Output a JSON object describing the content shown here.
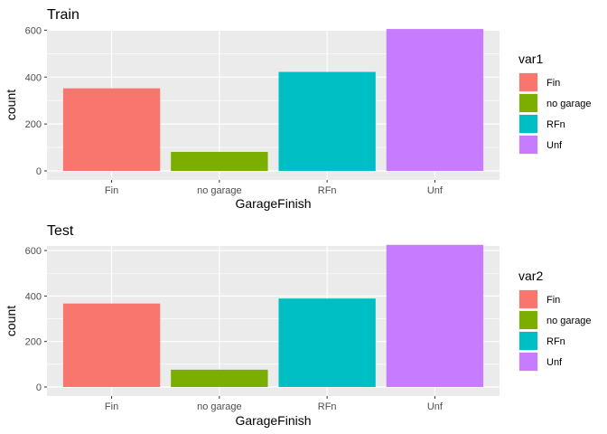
{
  "chart_data": [
    {
      "type": "bar",
      "title": "Train",
      "xlabel": "GarageFinish",
      "ylabel": "count",
      "categories": [
        "Fin",
        "no garage",
        "RFn",
        "Unf"
      ],
      "values": [
        352,
        81,
        422,
        605
      ],
      "ylim": [
        0,
        640
      ],
      "yticks": [
        0,
        200,
        400,
        600
      ],
      "grid": true,
      "legend": {
        "title": "var1",
        "placement": "right",
        "entries": [
          "Fin",
          "no garage",
          "RFn",
          "Unf"
        ]
      },
      "colors": [
        "#F8766D",
        "#7CAE00",
        "#00BFC4",
        "#C77CFF"
      ]
    },
    {
      "type": "bar",
      "title": "Test",
      "xlabel": "GarageFinish",
      "ylabel": "count",
      "categories": [
        "Fin",
        "no garage",
        "RFn",
        "Unf"
      ],
      "values": [
        367,
        76,
        389,
        625
      ],
      "ylim": [
        0,
        660
      ],
      "yticks": [
        0,
        200,
        400,
        600
      ],
      "grid": true,
      "legend": {
        "title": "var2",
        "placement": "right",
        "entries": [
          "Fin",
          "no garage",
          "RFn",
          "Unf"
        ]
      },
      "colors": [
        "#F8766D",
        "#7CAE00",
        "#00BFC4",
        "#C77CFF"
      ]
    }
  ]
}
